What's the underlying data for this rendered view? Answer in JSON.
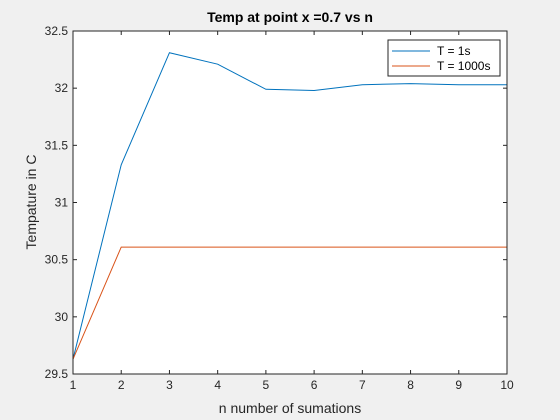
{
  "chart_data": {
    "type": "line",
    "title": "Temp at point x =0.7 vs n",
    "xlabel": "n number of sumations",
    "ylabel": "Tempature in C",
    "xlim": [
      1,
      10
    ],
    "ylim": [
      29.5,
      32.5
    ],
    "xticks": [
      "1",
      "2",
      "3",
      "4",
      "5",
      "6",
      "7",
      "8",
      "9",
      "10"
    ],
    "yticks": [
      "29.5",
      "30",
      "30.5",
      "31",
      "31.5",
      "32",
      "32.5"
    ],
    "x": [
      1,
      2,
      3,
      4,
      5,
      6,
      7,
      8,
      9,
      10
    ],
    "series": [
      {
        "name": "T = 1s",
        "color": "#0072bd",
        "values": [
          29.63,
          31.33,
          32.31,
          32.21,
          31.99,
          31.98,
          32.03,
          32.04,
          32.03,
          32.03
        ]
      },
      {
        "name": "T = 1000s",
        "color": "#d95319",
        "values": [
          29.63,
          30.61,
          30.61,
          30.61,
          30.61,
          30.61,
          30.61,
          30.61,
          30.61,
          30.61
        ]
      }
    ],
    "grid": false,
    "legend_position": "top-right",
    "box": true
  }
}
